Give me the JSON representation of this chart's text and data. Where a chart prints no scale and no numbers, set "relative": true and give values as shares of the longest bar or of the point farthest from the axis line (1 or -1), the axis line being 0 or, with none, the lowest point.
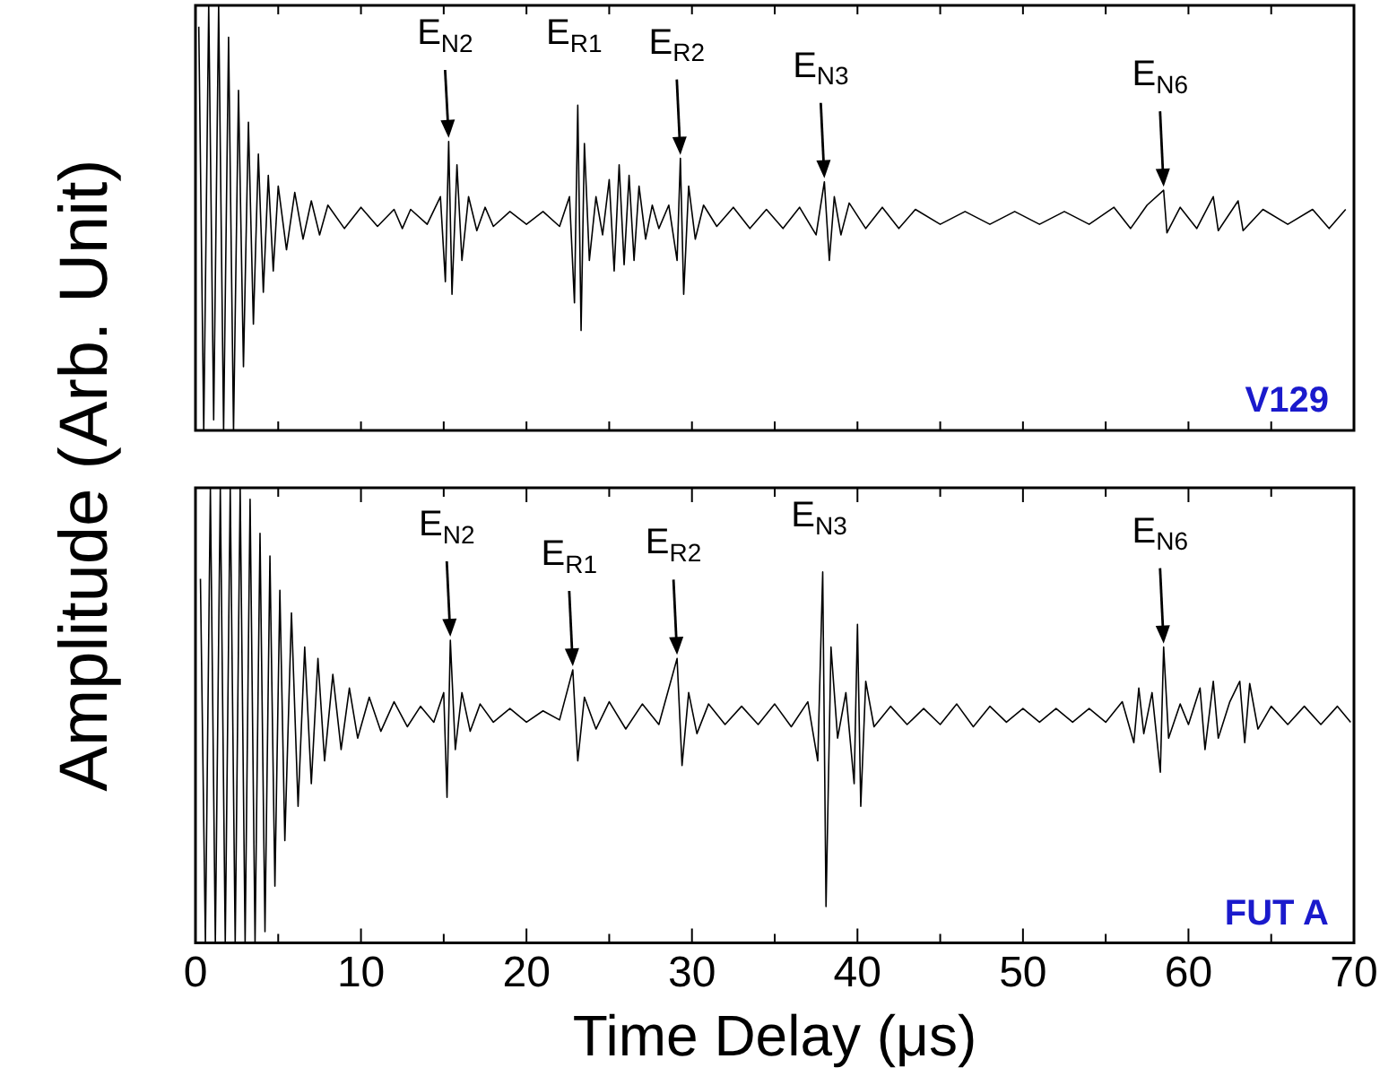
{
  "chart_data": [
    {
      "type": "line",
      "relative": true,
      "ylabel": "Amplitude (Arb. Unit)",
      "xlim": [
        0,
        70
      ],
      "xticks": [
        0,
        {
          "value": 5,
          "label": null
        },
        {
          "value": 10,
          "label": null
        },
        {
          "value": 15,
          "label": null
        },
        {
          "value": 20,
          "label": null
        },
        {
          "value": 25,
          "label": null
        },
        {
          "value": 30,
          "label": null
        },
        {
          "value": 35,
          "label": null
        },
        {
          "value": 40,
          "label": null
        },
        {
          "value": 45,
          "label": null
        },
        {
          "value": 50,
          "label": null
        },
        {
          "value": 55,
          "label": null
        },
        {
          "value": 60,
          "label": null
        },
        {
          "value": 65,
          "label": null
        },
        {
          "value": 70,
          "label": null
        }
      ],
      "tick_labels": false,
      "grid": false,
      "legend": false,
      "annotations": [
        "V129",
        {
          "text": "E$_{N2}$",
          "x": 15.3,
          "y": 0.68
        },
        {
          "text": "E$_{R1}$",
          "x": 23.1,
          "y": 0.765
        },
        {
          "text": "E$_{R2}$",
          "x": 29.3,
          "y": 0.64
        },
        {
          "text": "E$_{N3}$",
          "x": 38,
          "y": 0.585
        },
        {
          "text": "E$_{N6}$",
          "x": 58.5,
          "y": 0.565
        }
      ],
      "series": [
        {
          "color": "#000000",
          "x": [
            0.2,
            0.5,
            0.8,
            1.1,
            1.4,
            1.7,
            2.0,
            2.3,
            2.6,
            2.9,
            3.2,
            3.5,
            3.8,
            4.1,
            4.4,
            4.7,
            5.0,
            5.5,
            6.0,
            6.5,
            7.0,
            7.5,
            8.0,
            9.0,
            10,
            11,
            12,
            12.5,
            13,
            14,
            14.8,
            15.1,
            15.3,
            15.5,
            15.8,
            16.1,
            16.5,
            17,
            17.5,
            18,
            19,
            20,
            21,
            22,
            22.6,
            22.9,
            23.1,
            23.3,
            23.5,
            23.8,
            24.2,
            24.6,
            25,
            25.3,
            25.6,
            25.9,
            26.2,
            26.5,
            26.8,
            27.2,
            27.6,
            28,
            28.6,
            29.1,
            29.3,
            29.5,
            29.8,
            30.2,
            30.7,
            31.5,
            32.5,
            33.5,
            34.5,
            35.5,
            36.5,
            37.5,
            38,
            38.3,
            38.6,
            39,
            39.5,
            40.5,
            41.5,
            42.5,
            43.5,
            45,
            46.5,
            48,
            49.5,
            51,
            52.5,
            54,
            55.5,
            56.5,
            57.5,
            58.5,
            58.7,
            59.5,
            60.5,
            61.5,
            61.8,
            63,
            63.3,
            64.5,
            66,
            67.5,
            68.5,
            69.5
          ],
          "values": [
            0.95,
            0,
            1,
            0.025,
            1,
            0,
            0.925,
            0,
            0.8,
            0.15,
            0.725,
            0.25,
            0.65,
            0.325,
            0.6,
            0.375,
            0.575,
            0.425,
            0.56,
            0.45,
            0.54,
            0.46,
            0.53,
            0.475,
            0.525,
            0.48,
            0.52,
            0.475,
            0.52,
            0.485,
            0.55,
            0.35,
            0.68,
            0.32,
            0.625,
            0.4,
            0.55,
            0.47,
            0.525,
            0.48,
            0.515,
            0.485,
            0.515,
            0.48,
            0.55,
            0.3,
            0.765,
            0.235,
            0.675,
            0.4,
            0.55,
            0.46,
            0.59,
            0.375,
            0.625,
            0.39,
            0.6,
            0.4,
            0.575,
            0.45,
            0.53,
            0.475,
            0.53,
            0.4,
            0.64,
            0.32,
            0.575,
            0.45,
            0.53,
            0.48,
            0.525,
            0.475,
            0.52,
            0.475,
            0.525,
            0.46,
            0.585,
            0.4,
            0.55,
            0.46,
            0.535,
            0.475,
            0.525,
            0.475,
            0.52,
            0.485,
            0.515,
            0.485,
            0.515,
            0.485,
            0.515,
            0.485,
            0.525,
            0.475,
            0.53,
            0.565,
            0.465,
            0.525,
            0.475,
            0.55,
            0.47,
            0.54,
            0.47,
            0.52,
            0.485,
            0.52,
            0.475,
            0.52
          ]
        }
      ]
    },
    {
      "type": "line",
      "relative": true,
      "xlabel": "Time Delay (μs)",
      "xlim": [
        0,
        70
      ],
      "xticks": [
        0,
        {
          "value": 5,
          "label": null
        },
        10,
        {
          "value": 15,
          "label": null
        },
        20,
        {
          "value": 25,
          "label": null
        },
        30,
        {
          "value": 35,
          "label": null
        },
        40,
        {
          "value": 45,
          "label": null
        },
        50,
        {
          "value": 55,
          "label": null
        },
        60,
        {
          "value": 65,
          "label": null
        },
        70
      ],
      "tick_labels": "x",
      "grid": false,
      "legend": false,
      "annotations": [
        "FUT A",
        {
          "text": "E$_{N2}$",
          "x": 15.4,
          "y": 0.665
        },
        {
          "text": "E$_{R1}$",
          "x": 22.8,
          "y": 0.6
        },
        {
          "text": "E$_{R2}$",
          "x": 29.1,
          "y": 0.625
        },
        {
          "text": "E$_{N3}$",
          "x": 37.9,
          "y": 0.815
        },
        {
          "text": "E$_{N6}$",
          "x": 58.5,
          "y": 0.65
        }
      ],
      "series": [
        {
          "color": "#000000",
          "x": [
            0.3,
            0.6,
            0.9,
            1.2,
            1.5,
            1.8,
            2.1,
            2.4,
            2.7,
            3.0,
            3.3,
            3.6,
            3.9,
            4.2,
            4.5,
            4.8,
            5.1,
            5.4,
            5.8,
            6.2,
            6.6,
            7.0,
            7.4,
            7.8,
            8.3,
            8.8,
            9.3,
            9.8,
            10.5,
            11.2,
            12,
            12.8,
            13.6,
            14.4,
            15,
            15.2,
            15.4,
            15.7,
            16.1,
            16.6,
            17.2,
            18,
            19,
            20,
            21,
            22,
            22.8,
            23.1,
            23.5,
            24.2,
            25,
            26,
            27,
            28,
            29.1,
            29.4,
            29.8,
            30.3,
            31,
            32,
            33,
            34,
            35,
            36,
            37,
            37.6,
            37.9,
            38.1,
            38.4,
            38.8,
            39.3,
            39.8,
            40,
            40.2,
            40.5,
            41,
            42,
            43,
            44,
            45,
            46,
            47,
            48,
            49,
            50,
            51,
            52,
            53,
            54,
            55,
            56,
            56.7,
            57,
            57.3,
            57.8,
            58.3,
            58.5,
            58.8,
            59.5,
            60,
            60.7,
            61,
            61.5,
            61.8,
            62.5,
            63.1,
            63.4,
            63.7,
            64.2,
            65,
            66,
            67,
            68,
            69,
            69.8
          ],
          "values": [
            0.8,
            0,
            1,
            0,
            1,
            0,
            1,
            0,
            1,
            0,
            0.975,
            0,
            0.9,
            0.025,
            0.85,
            0.125,
            0.775,
            0.225,
            0.725,
            0.3,
            0.65,
            0.35,
            0.625,
            0.4,
            0.59,
            0.425,
            0.56,
            0.45,
            0.54,
            0.465,
            0.53,
            0.475,
            0.52,
            0.485,
            0.55,
            0.32,
            0.665,
            0.425,
            0.55,
            0.465,
            0.525,
            0.485,
            0.515,
            0.485,
            0.51,
            0.49,
            0.6,
            0.4,
            0.54,
            0.47,
            0.53,
            0.47,
            0.525,
            0.48,
            0.625,
            0.39,
            0.55,
            0.46,
            0.525,
            0.48,
            0.52,
            0.48,
            0.525,
            0.475,
            0.53,
            0.4,
            0.815,
            0.08,
            0.65,
            0.45,
            0.55,
            0.35,
            0.7,
            0.3,
            0.575,
            0.475,
            0.52,
            0.48,
            0.515,
            0.48,
            0.525,
            0.475,
            0.52,
            0.485,
            0.515,
            0.485,
            0.515,
            0.485,
            0.515,
            0.485,
            0.53,
            0.44,
            0.56,
            0.46,
            0.55,
            0.375,
            0.65,
            0.45,
            0.525,
            0.48,
            0.56,
            0.425,
            0.575,
            0.45,
            0.53,
            0.575,
            0.44,
            0.57,
            0.47,
            0.52,
            0.48,
            0.52,
            0.48,
            0.52,
            0.485
          ]
        }
      ]
    }
  ]
}
